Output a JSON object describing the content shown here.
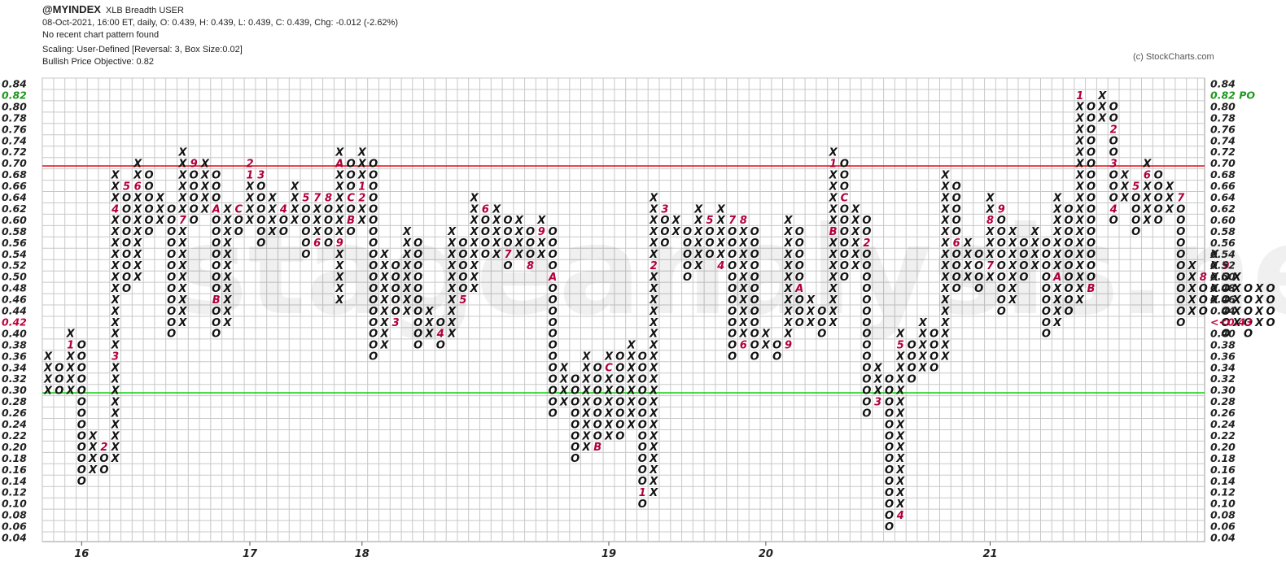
{
  "header": {
    "symbol": "@MYINDEX",
    "description": "XLB Breadth  USER",
    "quote": "08-Oct-2021, 16:00 ET, daily, O: 0.439, H: 0.439, L: 0.439, C: 0.439, Chg: -0.012 (-2.62%)",
    "pattern": "No recent chart pattern found",
    "scaling": "Scaling: User-Defined [Reversal: 3, Box Size:0.02]",
    "objective": "Bullish Price Objective: 0.82"
  },
  "copyright": "(c) StockCharts.com",
  "watermark": "stageanalysis.net",
  "chart_data": {
    "type": "point-and-figure",
    "box_size": 0.02,
    "reversal": 3,
    "ylim": [
      0.04,
      0.84
    ],
    "yticks": [
      "0.84",
      "0.82",
      "0.80",
      "0.78",
      "0.76",
      "0.74",
      "0.72",
      "0.70",
      "0.68",
      "0.66",
      "0.64",
      "0.62",
      "0.60",
      "0.58",
      "0.56",
      "0.54",
      "0.52",
      "0.50",
      "0.48",
      "0.46",
      "0.44",
      "0.42",
      "0.40",
      "0.38",
      "0.36",
      "0.34",
      "0.32",
      "0.30",
      "0.28",
      "0.26",
      "0.24",
      "0.22",
      "0.20",
      "0.18",
      "0.16",
      "0.14",
      "0.12",
      "0.10",
      "0.08",
      "0.06",
      "0.04"
    ],
    "left_labels": {
      "0.82": "0.82",
      "0.42": "0.42"
    },
    "right_labels": {
      "0.82": "0.82 PO",
      "0.42": "<<0.43"
    },
    "year_labels": [
      {
        "col": 3,
        "label": "16"
      },
      {
        "col": 18,
        "label": "17"
      },
      {
        "col": 28,
        "label": "18"
      },
      {
        "col": 50,
        "label": "19"
      },
      {
        "col": 64,
        "label": "20"
      },
      {
        "col": 84,
        "label": "21"
      }
    ],
    "horizontal_lines": [
      {
        "value": 0.695,
        "color": "#e8141e"
      },
      {
        "value": 0.295,
        "color": "#19d119"
      }
    ],
    "columns": [
      {
        "t": "X",
        "lo": 0.3,
        "hi": 0.36
      },
      {
        "t": "O",
        "lo": 0.3,
        "hi": 0.34
      },
      {
        "t": "X",
        "lo": 0.3,
        "hi": 0.4,
        "m": {
          "0.38": "1"
        }
      },
      {
        "t": "O",
        "lo": 0.14,
        "hi": 0.38
      },
      {
        "t": "X",
        "lo": 0.16,
        "hi": 0.22
      },
      {
        "t": "O",
        "lo": 0.16,
        "hi": 0.2,
        "m": {
          "0.20": "2"
        }
      },
      {
        "t": "X",
        "lo": 0.18,
        "hi": 0.68,
        "m": {
          "0.36": "3",
          "0.62": "4"
        }
      },
      {
        "t": "O",
        "lo": 0.48,
        "hi": 0.66,
        "m": {
          "0.66": "5"
        }
      },
      {
        "t": "X",
        "lo": 0.5,
        "hi": 0.7,
        "m": {
          "0.66": "6"
        }
      },
      {
        "t": "O",
        "lo": 0.58,
        "hi": 0.68
      },
      {
        "t": "X",
        "lo": 0.6,
        "hi": 0.64
      },
      {
        "t": "O",
        "lo": 0.4,
        "hi": 0.62
      },
      {
        "t": "X",
        "lo": 0.42,
        "hi": 0.72,
        "m": {
          "0.60": "7"
        }
      },
      {
        "t": "O",
        "lo": 0.6,
        "hi": 0.7,
        "m": {
          "0.70": "9"
        }
      },
      {
        "t": "X",
        "lo": 0.62,
        "hi": 0.7
      },
      {
        "t": "O",
        "lo": 0.4,
        "hi": 0.68,
        "m": {
          "0.62": "A",
          "0.46": "B"
        }
      },
      {
        "t": "X",
        "lo": 0.42,
        "hi": 0.62
      },
      {
        "t": "O",
        "lo": 0.58,
        "hi": 0.62,
        "m": {
          "0.62": "C"
        }
      },
      {
        "t": "X",
        "lo": 0.6,
        "hi": 0.7,
        "m": {
          "0.68": "1",
          "0.70": "2"
        }
      },
      {
        "t": "O",
        "lo": 0.56,
        "hi": 0.68,
        "m": {
          "0.68": "3"
        }
      },
      {
        "t": "X",
        "lo": 0.58,
        "hi": 0.64
      },
      {
        "t": "O",
        "lo": 0.58,
        "hi": 0.62,
        "m": {
          "0.62": "4"
        }
      },
      {
        "t": "X",
        "lo": 0.6,
        "hi": 0.66
      },
      {
        "t": "O",
        "lo": 0.54,
        "hi": 0.64,
        "m": {
          "0.64": "5"
        }
      },
      {
        "t": "X",
        "lo": 0.56,
        "hi": 0.64,
        "m": {
          "0.56": "6",
          "0.64": "7"
        }
      },
      {
        "t": "O",
        "lo": 0.56,
        "hi": 0.64,
        "m": {
          "0.64": "8"
        }
      },
      {
        "t": "X",
        "lo": 0.46,
        "hi": 0.72,
        "m": {
          "0.56": "9",
          "0.70": "A"
        }
      },
      {
        "t": "O",
        "lo": 0.58,
        "hi": 0.7,
        "m": {
          "0.60": "B",
          "0.64": "C"
        }
      },
      {
        "t": "X",
        "lo": 0.6,
        "hi": 0.72,
        "m": {
          "0.64": "2",
          "0.66": "1"
        }
      },
      {
        "t": "O",
        "lo": 0.36,
        "hi": 0.7
      },
      {
        "t": "X",
        "lo": 0.38,
        "hi": 0.54
      },
      {
        "t": "O",
        "lo": 0.42,
        "hi": 0.52,
        "m": {
          "0.42": "3"
        }
      },
      {
        "t": "X",
        "lo": 0.44,
        "hi": 0.58
      },
      {
        "t": "O",
        "lo": 0.38,
        "hi": 0.56
      },
      {
        "t": "X",
        "lo": 0.4,
        "hi": 0.44
      },
      {
        "t": "O",
        "lo": 0.38,
        "hi": 0.42,
        "m": {
          "0.40": "4"
        }
      },
      {
        "t": "X",
        "lo": 0.4,
        "hi": 0.58
      },
      {
        "t": "O",
        "lo": 0.46,
        "hi": 0.56,
        "m": {
          "0.46": "5"
        }
      },
      {
        "t": "X",
        "lo": 0.48,
        "hi": 0.64
      },
      {
        "t": "O",
        "lo": 0.54,
        "hi": 0.62,
        "m": {
          "0.62": "6"
        }
      },
      {
        "t": "X",
        "lo": 0.54,
        "hi": 0.62
      },
      {
        "t": "O",
        "lo": 0.52,
        "hi": 0.6,
        "m": {
          "0.54": "7"
        }
      },
      {
        "t": "X",
        "lo": 0.54,
        "hi": 0.6
      },
      {
        "t": "O",
        "lo": 0.52,
        "hi": 0.58,
        "m": {
          "0.52": "8"
        }
      },
      {
        "t": "X",
        "lo": 0.54,
        "hi": 0.6,
        "m": {
          "0.58": "9"
        }
      },
      {
        "t": "O",
        "lo": 0.26,
        "hi": 0.58,
        "m": {
          "0.50": "A"
        }
      },
      {
        "t": "X",
        "lo": 0.28,
        "hi": 0.34
      },
      {
        "t": "O",
        "lo": 0.18,
        "hi": 0.32
      },
      {
        "t": "X",
        "lo": 0.2,
        "hi": 0.36
      },
      {
        "t": "O",
        "lo": 0.2,
        "hi": 0.34,
        "m": {
          "0.20": "B"
        }
      },
      {
        "t": "X",
        "lo": 0.22,
        "hi": 0.36,
        "m": {
          "0.34": "C"
        }
      },
      {
        "t": "O",
        "lo": 0.22,
        "hi": 0.36
      },
      {
        "t": "X",
        "lo": 0.24,
        "hi": 0.38
      },
      {
        "t": "O",
        "lo": 0.1,
        "hi": 0.36,
        "m": {
          "0.12": "1"
        }
      },
      {
        "t": "X",
        "lo": 0.12,
        "hi": 0.64,
        "m": {
          "0.52": "2"
        }
      },
      {
        "t": "O",
        "lo": 0.56,
        "hi": 0.62,
        "m": {
          "0.62": "3"
        }
      },
      {
        "t": "X",
        "lo": 0.58,
        "hi": 0.6
      },
      {
        "t": "O",
        "lo": 0.5,
        "hi": 0.58
      },
      {
        "t": "X",
        "lo": 0.52,
        "hi": 0.62
      },
      {
        "t": "O",
        "lo": 0.54,
        "hi": 0.6,
        "m": {
          "0.60": "5"
        }
      },
      {
        "t": "X",
        "lo": 0.52,
        "hi": 0.62,
        "m": {
          "0.52": "4"
        }
      },
      {
        "t": "O",
        "lo": 0.36,
        "hi": 0.6,
        "m": {
          "0.60": "7"
        }
      },
      {
        "t": "X",
        "lo": 0.38,
        "hi": 0.6,
        "m": {
          "0.38": "6",
          "0.60": "8"
        }
      },
      {
        "t": "O",
        "lo": 0.36,
        "hi": 0.58
      },
      {
        "t": "X",
        "lo": 0.38,
        "hi": 0.4
      },
      {
        "t": "O",
        "lo": 0.36,
        "hi": 0.38
      },
      {
        "t": "X",
        "lo": 0.38,
        "hi": 0.6,
        "m": {
          "0.38": "9"
        }
      },
      {
        "t": "O",
        "lo": 0.42,
        "hi": 0.58,
        "m": {
          "0.48": "A"
        }
      },
      {
        "t": "X",
        "lo": 0.42,
        "hi": 0.46
      },
      {
        "t": "O",
        "lo": 0.4,
        "hi": 0.44
      },
      {
        "t": "X",
        "lo": 0.42,
        "hi": 0.72,
        "m": {
          "0.58": "B",
          "0.70": "1"
        }
      },
      {
        "t": "O",
        "lo": 0.5,
        "hi": 0.7,
        "m": {
          "0.64": "C"
        }
      },
      {
        "t": "X",
        "lo": 0.52,
        "hi": 0.62
      },
      {
        "t": "O",
        "lo": 0.26,
        "hi": 0.6,
        "m": {
          "0.56": "2"
        }
      },
      {
        "t": "X",
        "lo": 0.28,
        "hi": 0.34,
        "m": {
          "0.28": "3"
        }
      },
      {
        "t": "O",
        "lo": 0.06,
        "hi": 0.32
      },
      {
        "t": "X",
        "lo": 0.08,
        "hi": 0.4,
        "m": {
          "0.08": "4",
          "0.38": "5"
        }
      },
      {
        "t": "O",
        "lo": 0.32,
        "hi": 0.38
      },
      {
        "t": "X",
        "lo": 0.34,
        "hi": 0.42
      },
      {
        "t": "O",
        "lo": 0.34,
        "hi": 0.4
      },
      {
        "t": "X",
        "lo": 0.36,
        "hi": 0.68
      },
      {
        "t": "O",
        "lo": 0.48,
        "hi": 0.66,
        "m": {
          "0.56": "6"
        }
      },
      {
        "t": "X",
        "lo": 0.5,
        "hi": 0.56
      },
      {
        "t": "O",
        "lo": 0.48,
        "hi": 0.54
      },
      {
        "t": "X",
        "lo": 0.5,
        "hi": 0.64,
        "m": {
          "0.52": "7",
          "0.60": "8"
        }
      },
      {
        "t": "O",
        "lo": 0.44,
        "hi": 0.62,
        "m": {
          "0.62": "9"
        }
      },
      {
        "t": "X",
        "lo": 0.46,
        "hi": 0.58
      },
      {
        "t": "O",
        "lo": 0.5,
        "hi": 0.56
      },
      {
        "t": "X",
        "lo": 0.52,
        "hi": 0.58
      },
      {
        "t": "O",
        "lo": 0.4,
        "hi": 0.56
      },
      {
        "t": "X",
        "lo": 0.42,
        "hi": 0.64,
        "m": {
          "0.50": "A"
        }
      },
      {
        "t": "O",
        "lo": 0.44,
        "hi": 0.62
      },
      {
        "t": "X",
        "lo": 0.46,
        "hi": 0.8,
        "m": {
          "0.82": "1"
        }
      },
      {
        "t": "O",
        "lo": 0.48,
        "hi": 0.8,
        "m": {
          "0.48": "B"
        }
      },
      {
        "t": "X",
        "lo": 0.78,
        "hi": 0.82
      },
      {
        "t": "O",
        "lo": 0.6,
        "hi": 0.8,
        "m": {
          "0.76": "2",
          "0.70": "3",
          "0.62": "4"
        }
      },
      {
        "t": "X",
        "lo": 0.64,
        "hi": 0.68
      },
      {
        "t": "O",
        "lo": 0.58,
        "hi": 0.66,
        "m": {
          "0.66": "5"
        }
      },
      {
        "t": "X",
        "lo": 0.6,
        "hi": 0.7,
        "m": {
          "0.68": "6"
        }
      },
      {
        "t": "O",
        "lo": 0.6,
        "hi": 0.68
      },
      {
        "t": "X",
        "lo": 0.62,
        "hi": 0.66
      },
      {
        "t": "O",
        "lo": 0.42,
        "hi": 0.64,
        "m": {
          "0.64": "7"
        }
      },
      {
        "t": "X",
        "lo": 0.44,
        "hi": 0.52
      },
      {
        "t": "O",
        "lo": 0.44,
        "hi": 0.5,
        "m": {
          "0.50": "8"
        }
      },
      {
        "t": "X",
        "lo": 0.46,
        "hi": 0.54
      },
      {
        "t": "O",
        "lo": 0.4,
        "hi": 0.52,
        "m": {
          "0.52": "9"
        }
      },
      {
        "t": "X",
        "lo": 0.42,
        "hi": 0.5
      },
      {
        "t": "O",
        "lo": 0.4,
        "hi": 0.48
      },
      {
        "t": "X",
        "lo": 0.42,
        "hi": 0.48
      },
      {
        "t": "O",
        "lo": 0.42,
        "hi": 0.48
      }
    ]
  }
}
